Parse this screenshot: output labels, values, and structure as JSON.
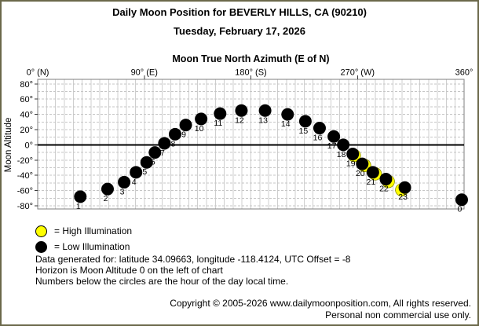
{
  "window": {
    "background": "#ffffff",
    "frame_border_color": "#6b684a"
  },
  "header": {
    "title_line1": "Daily Moon Position for BEVERLY HILLS, CA (90210)",
    "title_line2": "Tuesday, February 17, 2026"
  },
  "chart_data": {
    "type": "scatter",
    "title": "Moon True North Azimuth (E of N)",
    "xlabel": "Moon True North Azimuth (E of N)",
    "ylabel": "Moon Altitude",
    "x_axis": {
      "min": 0,
      "max": 360,
      "label_position": "top",
      "ticks": [
        {
          "value": 0,
          "label": "0° (N)"
        },
        {
          "value": 90,
          "label": "90° (E)"
        },
        {
          "value": 180,
          "label": "180° (S)"
        },
        {
          "value": 270,
          "label": "270° (W)"
        },
        {
          "value": 360,
          "label": "360°"
        }
      ],
      "minor_gridline_step": 7.5
    },
    "y_axis": {
      "min": -84,
      "max": 86,
      "tick_step": 20,
      "gridline_step": 10,
      "ticks": [
        {
          "value": 80,
          "label": "80°"
        },
        {
          "value": 60,
          "label": "60°"
        },
        {
          "value": 40,
          "label": "40°"
        },
        {
          "value": 20,
          "label": "20°"
        },
        {
          "value": 0,
          "label": "0°"
        },
        {
          "value": -20,
          "label": "-20°"
        },
        {
          "value": -40,
          "label": "-40°"
        },
        {
          "value": -60,
          "label": "-60°"
        },
        {
          "value": -80,
          "label": "-80°"
        }
      ]
    },
    "horizon_altitude": 0,
    "grid": true,
    "marker_colors": {
      "low": "#000000",
      "high": "#ffff00"
    },
    "points": [
      {
        "hour": 0,
        "azimuth": 358,
        "altitude": -72,
        "illumination": "low"
      },
      {
        "hour": 1,
        "azimuth": 36,
        "altitude": -68,
        "illumination": "low"
      },
      {
        "hour": 2,
        "azimuth": 59,
        "altitude": -58,
        "illumination": "low"
      },
      {
        "hour": 3,
        "azimuth": 73,
        "altitude": -49,
        "illumination": "low"
      },
      {
        "hour": 4,
        "azimuth": 83,
        "altitude": -36,
        "illumination": "low"
      },
      {
        "hour": 5,
        "azimuth": 92,
        "altitude": -23,
        "illumination": "low"
      },
      {
        "hour": 6,
        "azimuth": 99,
        "altitude": -10,
        "illumination": "low"
      },
      {
        "hour": 7,
        "azimuth": 107,
        "altitude": 2,
        "illumination": "low"
      },
      {
        "hour": 8,
        "azimuth": 116,
        "altitude": 14,
        "illumination": "low"
      },
      {
        "hour": 9,
        "azimuth": 125,
        "altitude": 26,
        "illumination": "low"
      },
      {
        "hour": 10,
        "azimuth": 138,
        "altitude": 34,
        "illumination": "low"
      },
      {
        "hour": 11,
        "azimuth": 154,
        "altitude": 41,
        "illumination": "low"
      },
      {
        "hour": 12,
        "azimuth": 172,
        "altitude": 45,
        "illumination": "low"
      },
      {
        "hour": 13,
        "azimuth": 192,
        "altitude": 45,
        "illumination": "low"
      },
      {
        "hour": 14,
        "azimuth": 211,
        "altitude": 40,
        "illumination": "low"
      },
      {
        "hour": 15,
        "azimuth": 226,
        "altitude": 31,
        "illumination": "low"
      },
      {
        "hour": 16,
        "azimuth": 238,
        "altitude": 22,
        "illumination": "low"
      },
      {
        "hour": 17,
        "azimuth": 250,
        "altitude": 11,
        "illumination": "low"
      },
      {
        "hour": 18,
        "azimuth": 258,
        "altitude": 0,
        "illumination": "low"
      },
      {
        "hour": 19,
        "azimuth": 266,
        "altitude": -12,
        "illumination": "low",
        "yellow_sliver_offset": [
          2,
          2
        ]
      },
      {
        "hour": 20,
        "azimuth": 274,
        "altitude": -25,
        "illumination": "low",
        "yellow_sliver_offset": [
          3,
          2
        ]
      },
      {
        "hour": 21,
        "azimuth": 283,
        "altitude": -36,
        "illumination": "low",
        "yellow_sliver_offset": [
          3,
          2
        ]
      },
      {
        "hour": 22,
        "azimuth": 294,
        "altitude": -45,
        "illumination": "low",
        "yellow_sliver_offset": [
          3,
          3
        ]
      },
      {
        "hour": 23,
        "azimuth": 310,
        "altitude": -56,
        "illumination": "low",
        "yellow_sliver_offset": [
          -4,
          3
        ]
      }
    ]
  },
  "legend": {
    "high": {
      "label": "= High Illumination",
      "color": "#ffff00"
    },
    "low": {
      "label": "= Low Illumination",
      "color": "#000000"
    }
  },
  "notes": [
    "Data generated for: latitude 34.09663, longitude -118.4124, UTC Offset = -8",
    "Horizon is Moon Altitude 0 on the left of chart",
    "Numbers below the circles are the hour of the day local time."
  ],
  "footer": {
    "line1": "Copyright © 2005-2026 www.dailymoonposition.com, All rights reserved.",
    "line2": "Personal non commercial use only."
  }
}
